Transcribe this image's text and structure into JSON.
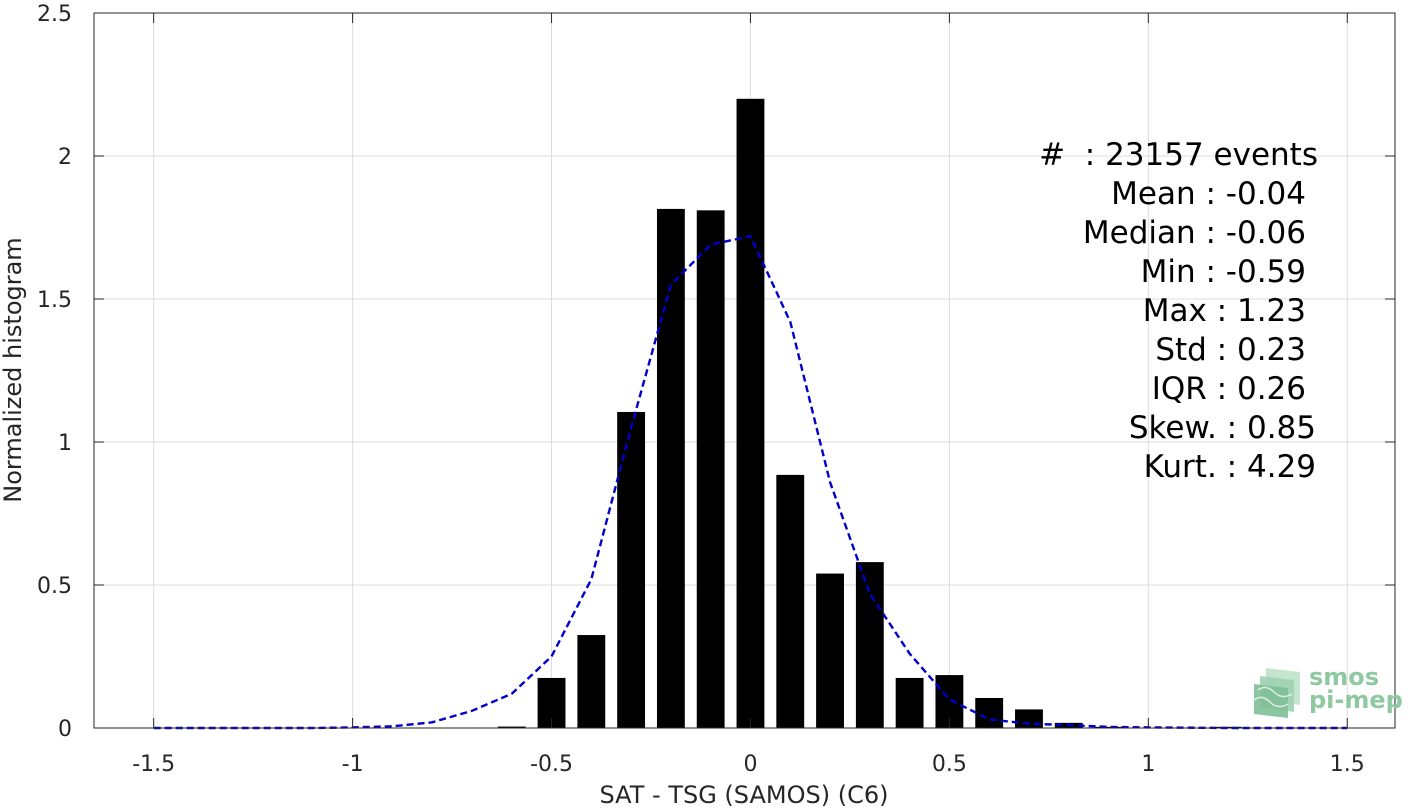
{
  "chart_data": {
    "type": "bar",
    "xlabel": "SAT - TSG (SAMOS) (C6)",
    "ylabel": "Normalized histogram",
    "xlim": [
      -1.65,
      1.62
    ],
    "ylim": [
      0,
      2.5
    ],
    "xticks": [
      "-1.5",
      "-1",
      "-0.5",
      "0",
      "0.5",
      "1",
      "1.5"
    ],
    "xtick_values": [
      -1.5,
      -1,
      -0.5,
      0,
      0.5,
      1,
      1.5
    ],
    "yticks": [
      "0",
      "0.5",
      "1",
      "1.5",
      "2",
      "2.5"
    ],
    "ytick_values": [
      0,
      0.5,
      1,
      1.5,
      2,
      2.5
    ],
    "grid": true,
    "bar_width": 0.07,
    "bars": [
      {
        "x": -0.6,
        "y": 0.005
      },
      {
        "x": -0.5,
        "y": 0.175
      },
      {
        "x": -0.4,
        "y": 0.325
      },
      {
        "x": -0.3,
        "y": 1.105
      },
      {
        "x": -0.2,
        "y": 1.815
      },
      {
        "x": -0.1,
        "y": 1.81
      },
      {
        "x": 0.0,
        "y": 2.2
      },
      {
        "x": 0.1,
        "y": 0.885
      },
      {
        "x": 0.2,
        "y": 0.54
      },
      {
        "x": 0.3,
        "y": 0.58
      },
      {
        "x": 0.4,
        "y": 0.175
      },
      {
        "x": 0.5,
        "y": 0.185
      },
      {
        "x": 0.6,
        "y": 0.105
      },
      {
        "x": 0.7,
        "y": 0.065
      },
      {
        "x": 0.8,
        "y": 0.018
      },
      {
        "x": 0.9,
        "y": 0.004
      },
      {
        "x": 1.2,
        "y": 0.004
      }
    ],
    "bar_color": "#000000",
    "fit_color": "#0000cc",
    "fit_line": {
      "x": [
        -1.5,
        -1.4,
        -1.3,
        -1.2,
        -1.1,
        -1.0,
        -0.9,
        -0.8,
        -0.7,
        -0.6,
        -0.5,
        -0.4,
        -0.3,
        -0.2,
        -0.1,
        0.0,
        0.1,
        0.2,
        0.3,
        0.4,
        0.5,
        0.6,
        0.7,
        0.8,
        0.9,
        1.0,
        1.1,
        1.2,
        1.3,
        1.4,
        1.5
      ],
      "y": [
        0,
        0,
        0,
        0,
        0,
        0.002,
        0.006,
        0.02,
        0.06,
        0.12,
        0.25,
        0.52,
        1.05,
        1.55,
        1.69,
        1.72,
        1.42,
        0.86,
        0.47,
        0.26,
        0.1,
        0.03,
        0.015,
        0.01,
        0.004,
        0.002,
        0.001,
        0,
        0,
        0,
        0
      ]
    },
    "stats": [
      "#  : 23157 events",
      "Mean : -0.04",
      "Median : -0.06",
      "Min : -0.59",
      "Max : 1.23",
      "Std : 0.23",
      "IQR : 0.26",
      "Skew. : 0.85",
      "Kurt. : 4.29"
    ]
  },
  "logo": {
    "line1": "smos",
    "line2": "pi-mep"
  }
}
